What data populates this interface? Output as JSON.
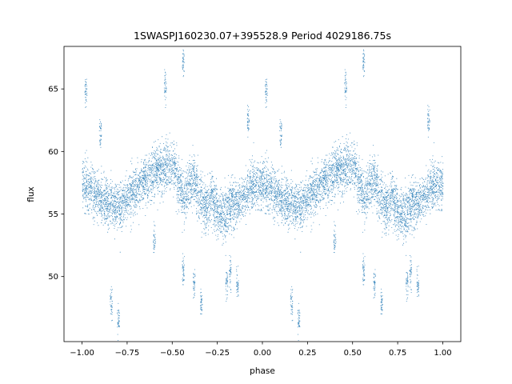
{
  "chart_data": {
    "type": "scatter",
    "title": "1SWASPJ160230.07+395528.9 Period 4029186.75s",
    "xlabel": "phase",
    "ylabel": "flux",
    "xlim": [
      -1.1,
      1.1
    ],
    "ylim": [
      44.8,
      68.4
    ],
    "x_ticks": [
      -1.0,
      -0.75,
      -0.5,
      -0.25,
      0.0,
      0.25,
      0.5,
      0.75,
      1.0
    ],
    "x_tick_labels": [
      "−1.00",
      "−0.75",
      "−0.50",
      "−0.25",
      "0.00",
      "0.25",
      "0.50",
      "0.75",
      "1.00"
    ],
    "y_ticks": [
      50,
      55,
      60,
      65
    ],
    "y_tick_labels": [
      "50",
      "55",
      "60",
      "65"
    ],
    "grid": false,
    "point_color": "#1f77b4",
    "series": [
      {
        "profile_phase": [
          0.0,
          0.02,
          0.04,
          0.06,
          0.08,
          0.1,
          0.12,
          0.14,
          0.16,
          0.18,
          0.2,
          0.22,
          0.24,
          0.26,
          0.28,
          0.3,
          0.32,
          0.34,
          0.36,
          0.38,
          0.4,
          0.42,
          0.44,
          0.46,
          0.48,
          0.5,
          0.52,
          0.54,
          0.56,
          0.58,
          0.6,
          0.62,
          0.64,
          0.66,
          0.68,
          0.7,
          0.72,
          0.74,
          0.76,
          0.78,
          0.8,
          0.82,
          0.84,
          0.86,
          0.88,
          0.9,
          0.92,
          0.94,
          0.96,
          0.98,
          1.0
        ],
        "profile_flux": [
          57.5,
          57.2,
          57.0,
          56.8,
          56.5,
          56.2,
          56.0,
          55.8,
          55.9,
          55.6,
          55.6,
          55.8,
          56.2,
          56.6,
          57.0,
          57.2,
          57.3,
          57.8,
          58.0,
          58.2,
          58.3,
          58.5,
          58.6,
          58.8,
          59.0,
          59.0,
          58.2,
          57.2,
          56.5,
          56.8,
          57.6,
          57.8,
          57.0,
          56.0,
          55.6,
          55.8,
          56.2,
          55.5,
          55.0,
          55.0,
          55.2,
          55.6,
          55.8,
          56.0,
          56.2,
          56.5,
          57.0,
          57.0,
          57.3,
          57.5,
          57.5
        ],
        "scatter_spread": 1.6,
        "outlier_clusters": [
          {
            "phase": 0.02,
            "flux": 64.8
          },
          {
            "phase": 0.16,
            "flux": 48.0
          },
          {
            "phase": 0.2,
            "flux": 46.6
          },
          {
            "phase": 0.4,
            "flux": 52.8
          },
          {
            "phase": 0.46,
            "flux": 65.3
          },
          {
            "phase": 0.56,
            "flux": 50.5
          },
          {
            "phase": 0.56,
            "flux": 67.0
          },
          {
            "phase": 0.62,
            "flux": 49.5
          },
          {
            "phase": 0.66,
            "flux": 48.0
          },
          {
            "phase": 0.8,
            "flux": 49.5
          },
          {
            "phase": 0.82,
            "flux": 50.2
          },
          {
            "phase": 0.86,
            "flux": 49.3
          },
          {
            "phase": 0.1,
            "flux": 61.5
          },
          {
            "phase": 0.92,
            "flux": 62.5
          }
        ],
        "points_per_cycle": 4200
      }
    ]
  }
}
